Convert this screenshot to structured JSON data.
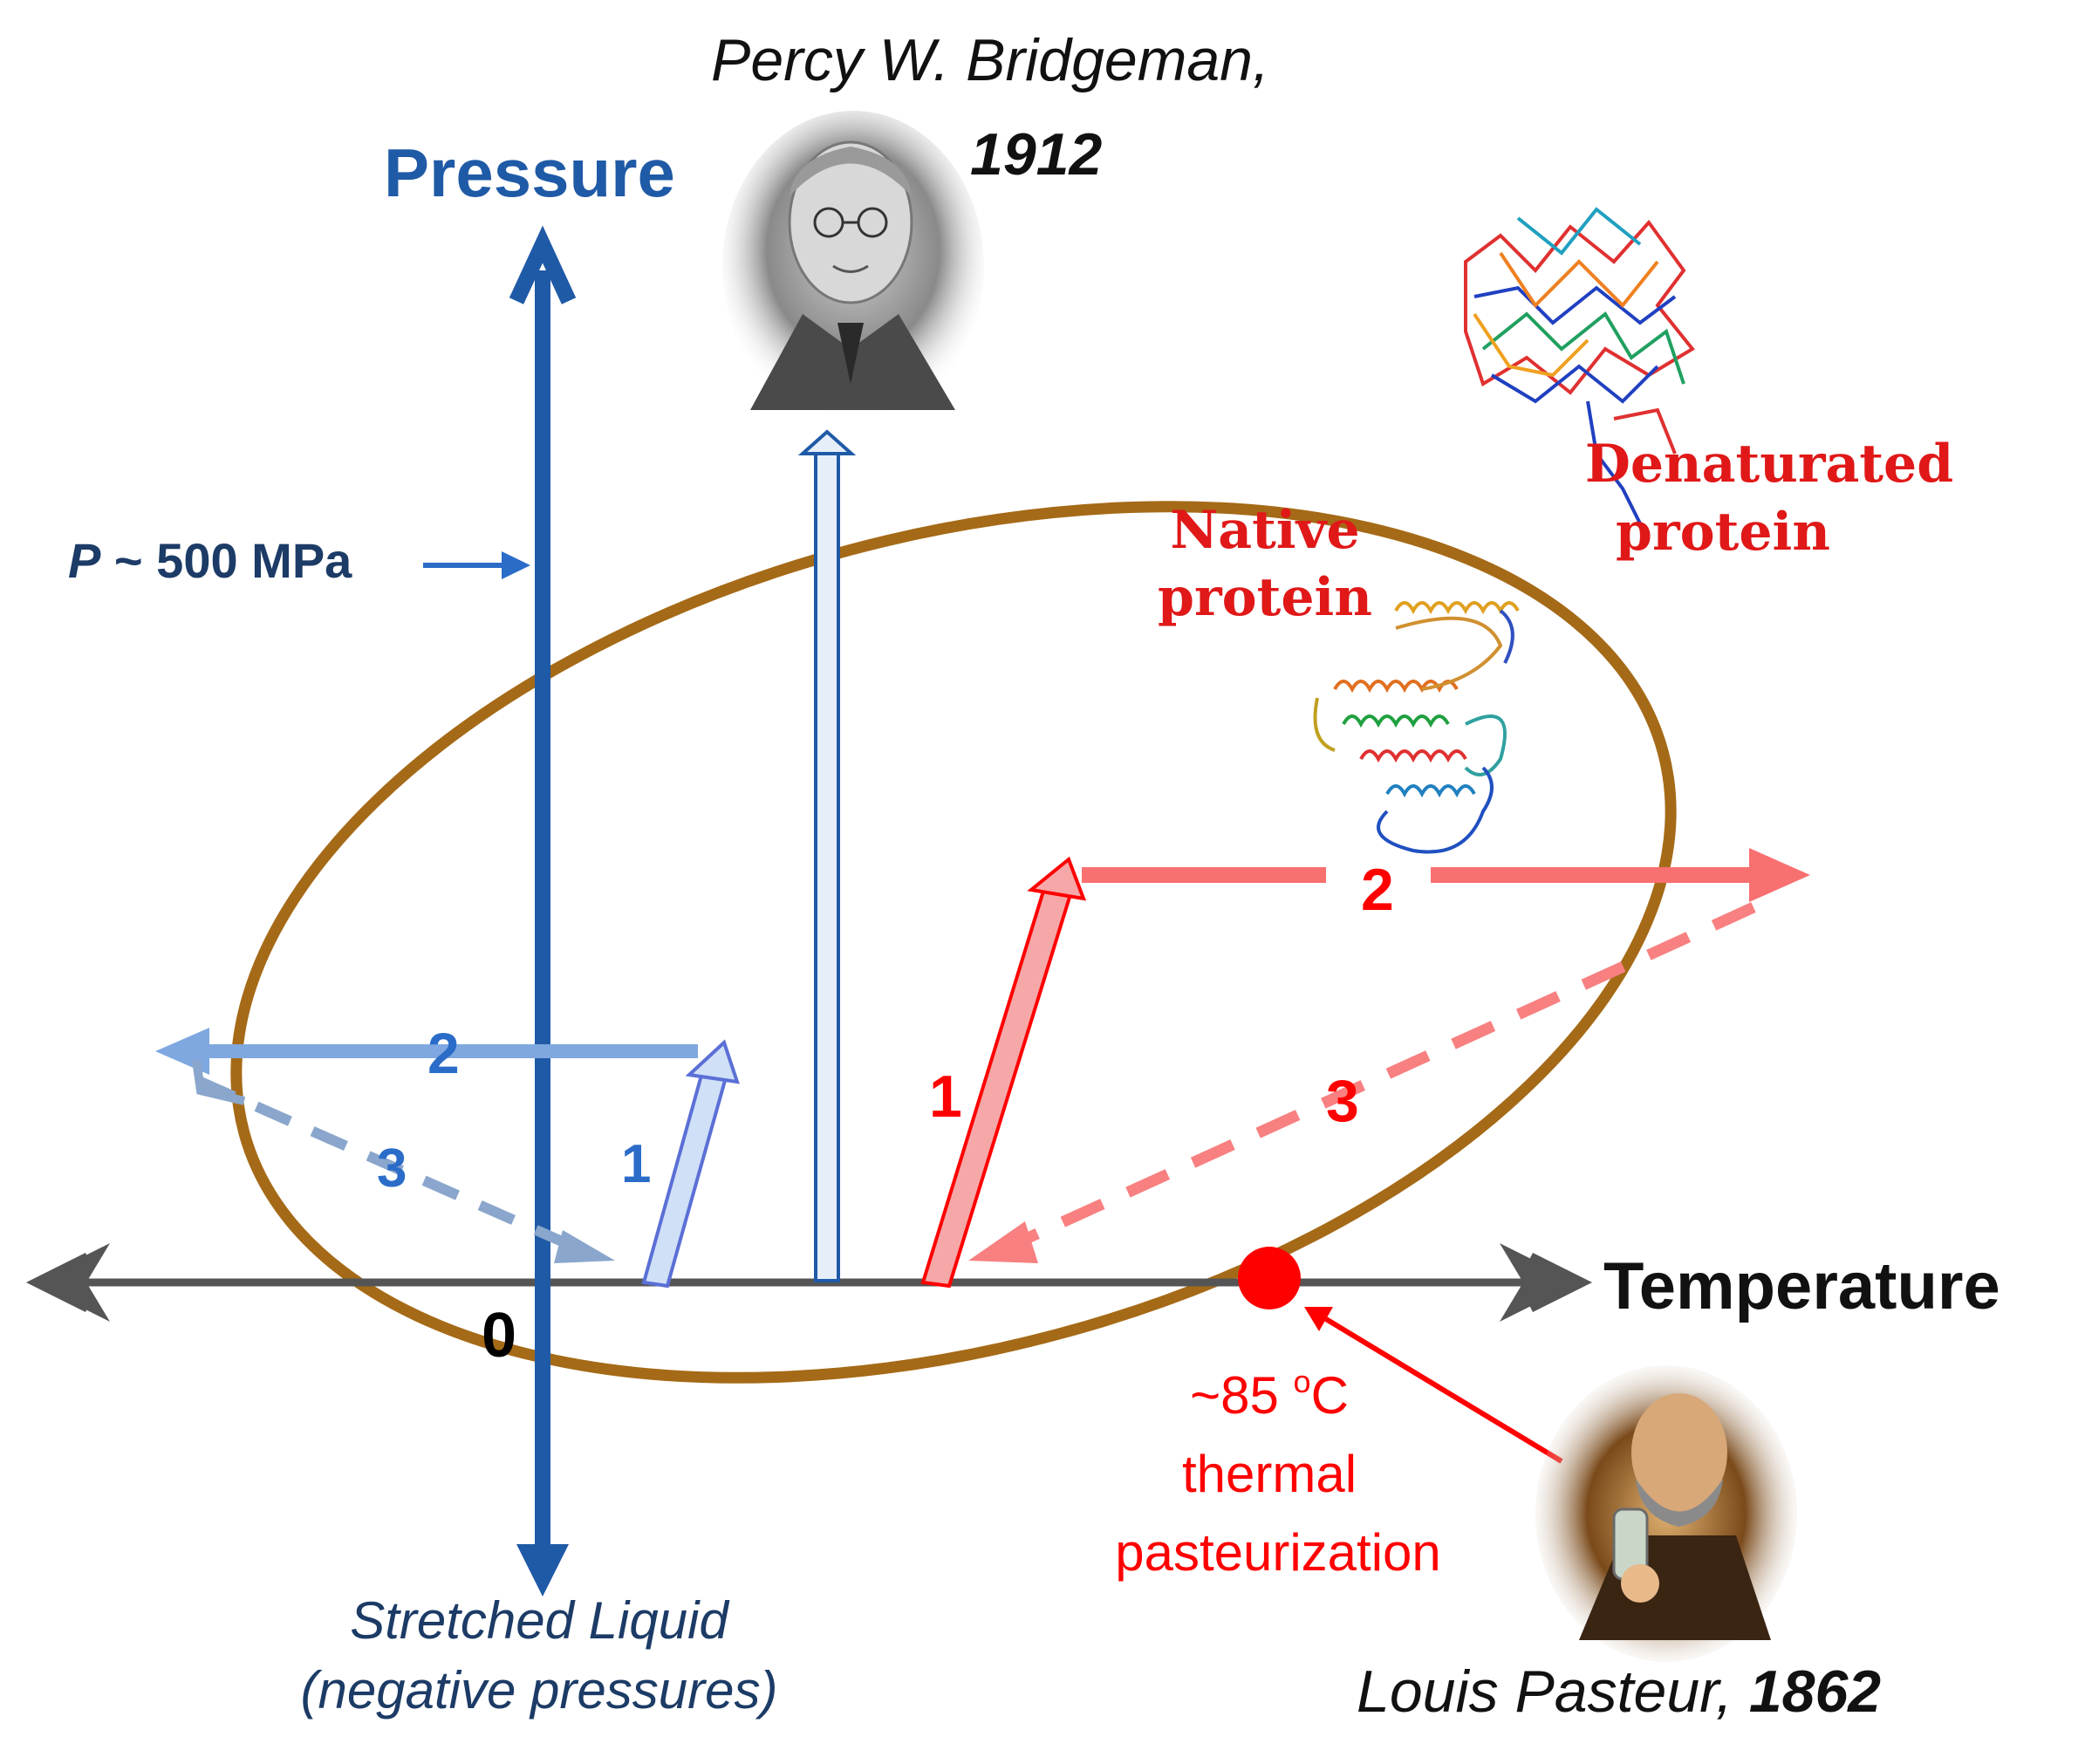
{
  "axes": {
    "y_label": "Pressure",
    "x_label": "Temperature",
    "origin_label": "0",
    "bottom_note_line1": "Stretched Liquid",
    "bottom_note_line2": "(negative pressures)"
  },
  "pressure_marker": {
    "symbol": "P",
    "text": " ~ 500 MPa"
  },
  "bridgeman": {
    "name": "Percy W. Bridgeman,",
    "year": "1912"
  },
  "pasteur": {
    "name": "Louis Pasteur, ",
    "year": "1862"
  },
  "pasteurization": {
    "temp_prefix": "~85 ",
    "temp_sup": "o",
    "temp_unit": "C",
    "line2": "thermal",
    "line3": "pasteurization"
  },
  "proteins": {
    "native_line1": "Native",
    "native_line2": "protein",
    "denatured_line1": "Denaturated",
    "denatured_line2": "protein"
  },
  "paths": {
    "blue_step1": "1",
    "blue_step2": "2",
    "blue_step3": "3",
    "red_step1": "1",
    "red_step2": "2",
    "red_step3": "3"
  },
  "colors": {
    "pressure_axis": "#1f5aa6",
    "temperature_axis": "#555555",
    "ellipse": "#a56a17",
    "red": "#ff0000",
    "red_light": "#f87070",
    "blue_text": "#2a6cc8",
    "blue_light": "#7fa8e0",
    "blue_dash": "#8aa6cc",
    "dark_blue_text": "#1c3b66"
  }
}
